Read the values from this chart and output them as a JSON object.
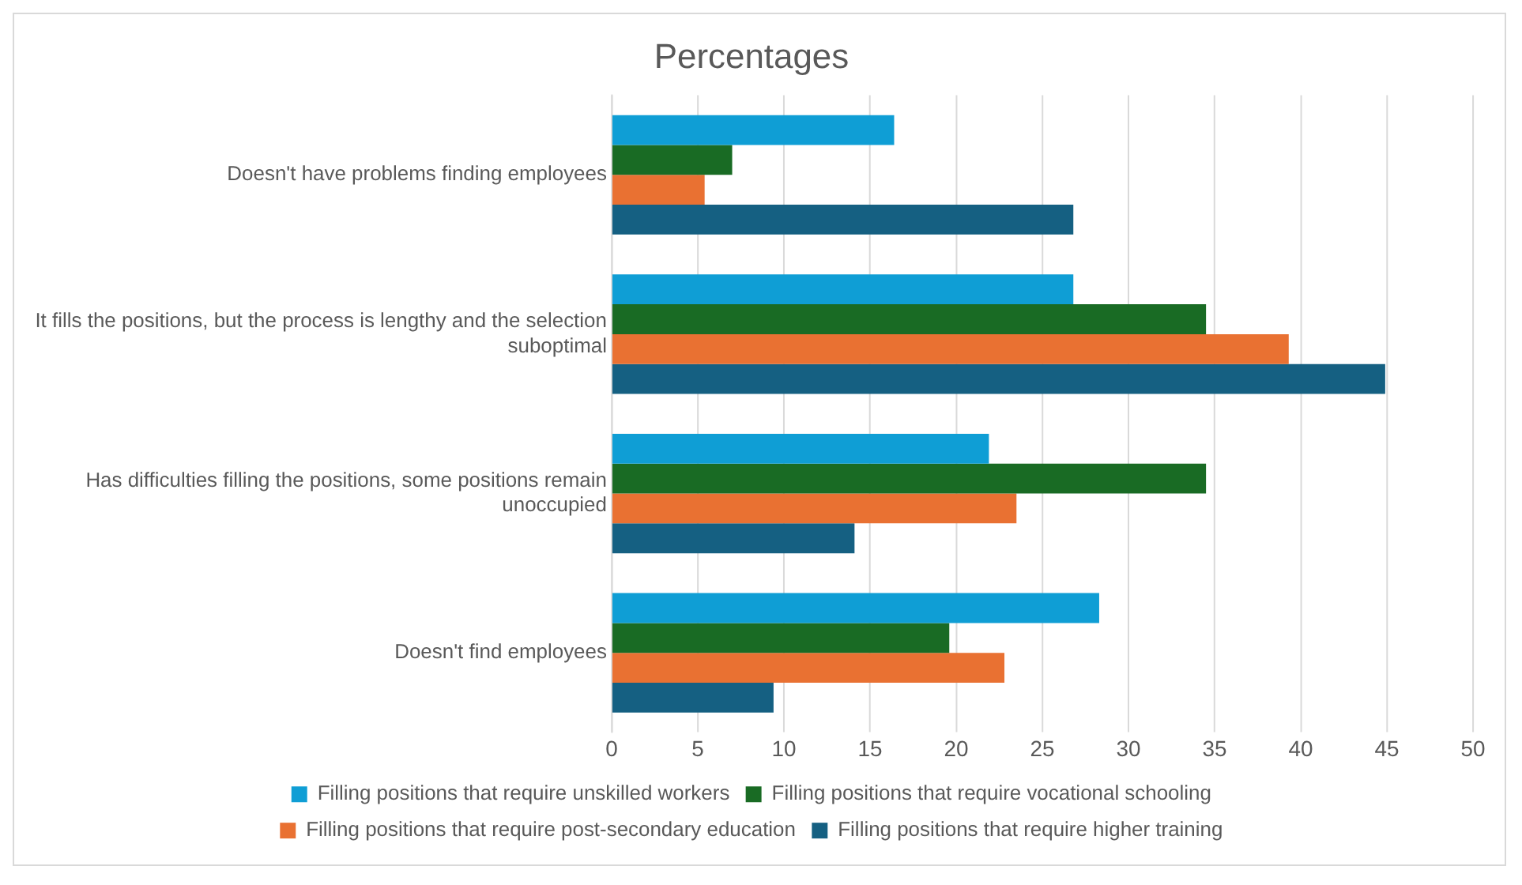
{
  "chart_data": {
    "type": "bar",
    "orientation": "horizontal",
    "title": "Percentages",
    "categories": [
      "Doesn't have problems finding employees",
      "It fills the positions, but the process is lengthy and the selection suboptimal",
      "Has difficulties filling the positions, some positions remain unoccupied",
      "Doesn't find employees"
    ],
    "series": [
      {
        "name": "Filling positions that require unskilled workers",
        "color": "#0f9ed5",
        "values": [
          16.4,
          26.8,
          21.9,
          28.3
        ]
      },
      {
        "name": "Filling positions that require vocational schooling",
        "color": "#196b24",
        "values": [
          7.0,
          34.5,
          34.5,
          19.6
        ]
      },
      {
        "name": "Filling positions that require post-secondary education",
        "color": "#e97132",
        "values": [
          5.4,
          39.3,
          23.5,
          22.8
        ]
      },
      {
        "name": "Filling positions that require higher training",
        "color": "#156082",
        "values": [
          26.8,
          44.9,
          14.1,
          9.4
        ]
      }
    ],
    "xlim": [
      0,
      50
    ],
    "xticks": [
      0,
      5,
      10,
      15,
      20,
      25,
      30,
      35,
      40,
      45,
      50
    ],
    "grid": "x",
    "legend": "bottom"
  }
}
